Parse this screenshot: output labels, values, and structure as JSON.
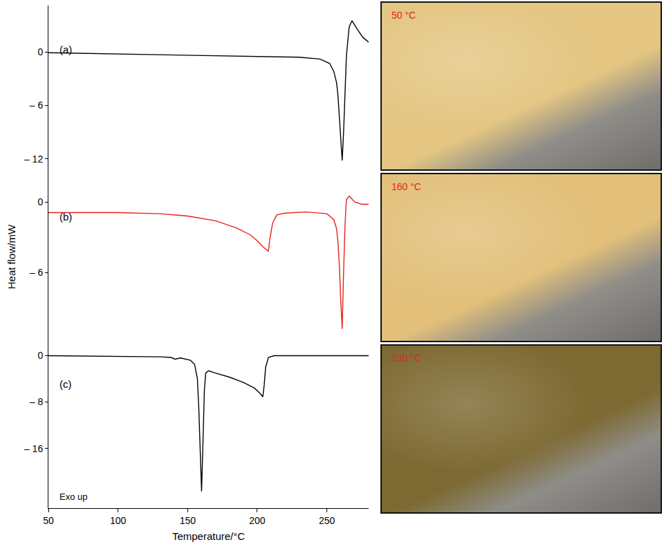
{
  "chart_data": {
    "type": "line",
    "x_label": "Temperature/°C",
    "y_label": "Heat flow/mW",
    "xlim": [
      50,
      280
    ],
    "xticks": [
      50,
      100,
      150,
      200,
      250
    ],
    "annotations": [
      "Exo up"
    ],
    "panels": [
      {
        "label": "(a)",
        "ylim": [
          -13.6,
          5.2
        ],
        "yticks": [
          {
            "value": -12,
            "label": "– 12"
          },
          {
            "value": -6,
            "label": "– 6"
          },
          0
        ],
        "series": [
          {
            "color": "#000000",
            "x": [
              50,
              100,
              150,
              200,
              230,
              245,
              252,
              255,
              257,
              258,
              259,
              260,
              261,
              262,
              263,
              264,
              266,
              268,
              272,
              276,
              280
            ],
            "values": [
              -0.1,
              -0.25,
              -0.4,
              -0.5,
              -0.6,
              -0.8,
              -1.3,
              -2.2,
              -3.5,
              -5,
              -7.5,
              -10.5,
              -12.2,
              -9,
              -4,
              -0.5,
              2.8,
              3.5,
              2.5,
              1.6,
              1.1
            ]
          }
        ]
      },
      {
        "label": "(b)",
        "ylim": [
          -11.8,
          2.46
        ],
        "yticks": [
          {
            "value": -6,
            "label": "– 6"
          },
          0
        ],
        "series": [
          {
            "color": "#e8201c",
            "x": [
              50,
              100,
              130,
              150,
              170,
              185,
              195,
              200,
              204,
              207,
              208,
              209,
              211,
              214,
              220,
              235,
              250,
              255,
              257,
              258,
              259,
              260,
              261,
              262,
              263,
              264,
              266,
              270,
              275,
              280
            ],
            "values": [
              -0.9,
              -0.9,
              -1.0,
              -1.2,
              -1.6,
              -2.2,
              -2.8,
              -3.3,
              -3.8,
              -4.1,
              -4.2,
              -3.2,
              -1.8,
              -1.1,
              -0.95,
              -0.85,
              -1.0,
              -1.5,
              -2.3,
              -3.5,
              -5.5,
              -8.5,
              -10.8,
              -6,
              -2,
              0.2,
              0.5,
              0,
              -0.2,
              -0.2
            ]
          }
        ]
      },
      {
        "label": "(c)",
        "ylim": [
          -26.3,
          2.6
        ],
        "yticks": [
          {
            "value": -16,
            "label": "– 16"
          },
          {
            "value": -8,
            "label": "– 8"
          },
          0
        ],
        "series": [
          {
            "color": "#000000",
            "x": [
              50,
              100,
              130,
              138,
              141,
              145,
              152,
              155,
              157,
              158,
              159,
              160,
              161,
              162,
              163,
              165,
              170,
              180,
              190,
              198,
              202,
              204,
              205,
              206,
              208,
              212,
              240,
              280
            ],
            "values": [
              0,
              -0.1,
              -0.2,
              -0.3,
              -0.6,
              -0.4,
              -0.8,
              -1.5,
              -4,
              -9,
              -17,
              -23.4,
              -15,
              -6,
              -3,
              -2.6,
              -3,
              -3.7,
              -4.6,
              -5.6,
              -6.5,
              -7.1,
              -5,
              -2,
              -0.3,
              0,
              0,
              0
            ]
          }
        ]
      }
    ]
  },
  "photos": [
    {
      "label": "50 °C",
      "color": "#e4c682"
    },
    {
      "label": "160 °C",
      "color": "#e2c07a"
    },
    {
      "label": "230 °C",
      "color": "#7d6a32"
    }
  ]
}
